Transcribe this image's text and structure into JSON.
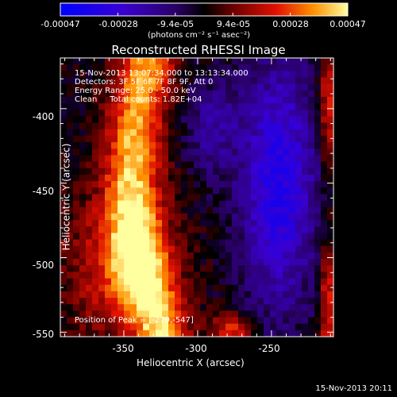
{
  "colorbar": {
    "tick_labels": [
      "-0.00047",
      "-0.00028",
      "-9.4e-05",
      "9.4e-05",
      "0.00028",
      "0.00047"
    ],
    "units_text": "(photons cm⁻² s⁻¹ asec⁻²)"
  },
  "chart_data": {
    "type": "heatmap",
    "title": "Reconstructed RHESSI Image",
    "xlabel": "Heliocentric X (arcsec)",
    "ylabel": "Heliocentric Y (arcsec)",
    "xlim": [
      -393,
      -208
    ],
    "ylim": [
      -553,
      -366
    ],
    "x_ticks": [
      -350,
      -300,
      -250
    ],
    "y_ticks": [
      -400,
      -450,
      -500,
      -550
    ],
    "colorbar_range": [
      -0.00047,
      0.00047
    ],
    "peak_position": [
      -279,
      -547
    ],
    "annotations": [
      "15-Nov-2013 13:07:34.000 to 13:13:34.000",
      "Detectors: 3F 5F 6F 7F 8F 9F, Att 0",
      "Energy Range: 25.0 - 50.0 keV",
      "Clean     Total counts: 1.82E+04",
      "Position of Peak = [-279,-547]"
    ]
  },
  "timestamp": "15-Nov-2013 20:11"
}
